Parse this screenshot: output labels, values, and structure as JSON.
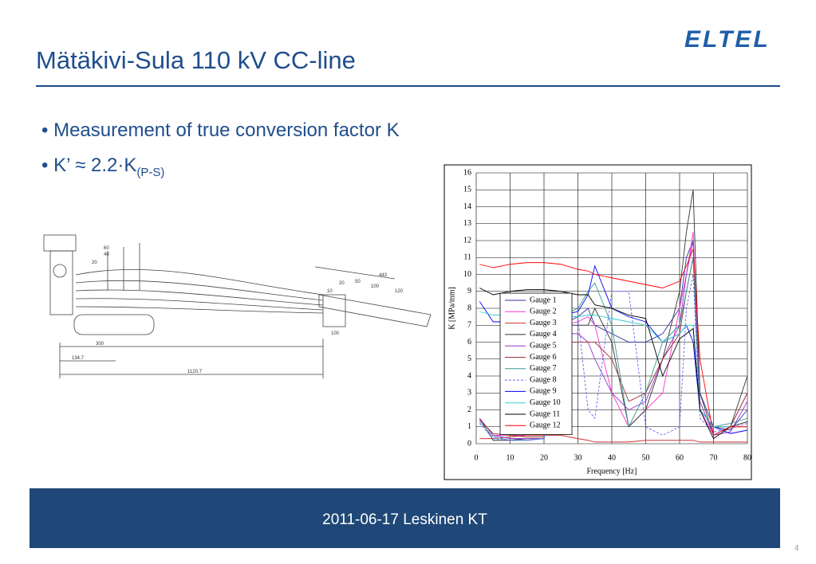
{
  "header": {
    "title": "Mätäkivi-Sula 110 kV CC-line",
    "logo": "ELTEL"
  },
  "bullets": [
    {
      "text": "Measurement of true conversion factor K"
    },
    {
      "text": "K’ ≈ 2.2·K",
      "subscript": "(P-S)"
    }
  ],
  "drawing": {
    "labels": [
      "60",
      "40",
      "20",
      "300",
      "134.7",
      "1120.7",
      "443",
      "20",
      "50",
      "100",
      "120",
      "10",
      "100"
    ]
  },
  "chart_data": {
    "type": "line",
    "xlabel": "Frequency [Hz]",
    "ylabel": "K [MPa/mm]",
    "x": [
      1,
      5,
      10,
      15,
      20,
      25,
      30,
      33,
      35,
      40,
      45,
      50,
      55,
      60,
      62,
      64,
      66,
      70,
      75,
      80
    ],
    "xlim": [
      0,
      80
    ],
    "xticks": [
      0,
      10,
      20,
      30,
      40,
      50,
      60,
      70,
      80
    ],
    "ylim": [
      0,
      16
    ],
    "yticks": [
      0,
      1,
      2,
      3,
      4,
      5,
      6,
      7,
      8,
      9,
      10,
      11,
      12,
      13,
      14,
      15,
      16
    ],
    "grid": true,
    "legend": "left",
    "series": [
      {
        "name": "Gauge 1",
        "color": "#3333aa",
        "values": [
          1.5,
          0.5,
          0.3,
          0.3,
          0.3,
          7,
          7.5,
          8,
          7,
          6.5,
          6,
          6,
          6.5,
          8,
          11,
          12,
          3,
          1,
          0.8,
          2
        ]
      },
      {
        "name": "Gauge 2",
        "color": "#ff33cc",
        "values": [
          1.5,
          0.5,
          0.5,
          0.5,
          0.5,
          7,
          7.2,
          7.5,
          7,
          3,
          1,
          2,
          3,
          8,
          10,
          12.5,
          2,
          0.5,
          1,
          3
        ]
      },
      {
        "name": "Gauge 3",
        "color": "#cc3333",
        "values": [
          0.3,
          0.3,
          0.4,
          0.5,
          0.5,
          0.5,
          0.3,
          0.2,
          0.1,
          0.1,
          0.1,
          0.2,
          0.2,
          0.2,
          0.2,
          0.2,
          0.1,
          0.1,
          0.1,
          0.1
        ]
      },
      {
        "name": "Gauge 4",
        "color": "#333333",
        "values": [
          1.5,
          0.2,
          0.2,
          0.3,
          0.3,
          7,
          7,
          7,
          8,
          6,
          1,
          2,
          5,
          9,
          12.5,
          15,
          3,
          0.5,
          1,
          4
        ]
      },
      {
        "name": "Gauge 5",
        "color": "#9933cc",
        "values": [
          1.5,
          0.5,
          0.3,
          0.3,
          0.3,
          6.5,
          6.5,
          6,
          5,
          3,
          2,
          2.5,
          5,
          7,
          10,
          12,
          2.5,
          0.5,
          0.7,
          2.5
        ]
      },
      {
        "name": "Gauge 6",
        "color": "#993333",
        "values": [
          1.4,
          0.6,
          0.5,
          0.4,
          0.4,
          6,
          6,
          6,
          6,
          5,
          2.5,
          3,
          5,
          6.5,
          9,
          11,
          2,
          1,
          1,
          3
        ]
      },
      {
        "name": "Gauge 7",
        "color": "#339999",
        "values": [
          1.3,
          0.4,
          0.2,
          0.2,
          0.3,
          7.5,
          8,
          9,
          9.5,
          7,
          1,
          3,
          6,
          7,
          9,
          11,
          2,
          1,
          1.2,
          1.5
        ]
      },
      {
        "name": "Gauge 8",
        "color": "#6666ff",
        "dashed": true,
        "values": [
          1.2,
          0.3,
          0.2,
          0.2,
          0.3,
          7.5,
          7.5,
          2,
          1.5,
          9,
          9,
          1,
          0.5,
          1,
          8,
          10,
          1.5,
          0.7,
          0.9,
          1.2
        ]
      },
      {
        "name": "Gauge 9",
        "color": "#0000ff",
        "values": [
          8.4,
          7.2,
          7.2,
          7.2,
          7.2,
          7.6,
          7.8,
          8.8,
          10.5,
          8,
          7.5,
          7.2,
          6,
          6.5,
          7,
          6,
          2,
          1,
          0.6,
          0.8
        ]
      },
      {
        "name": "Gauge 10",
        "color": "#33cccc",
        "values": [
          7.8,
          7.6,
          7.6,
          7.6,
          7.6,
          7.5,
          7.5,
          7.6,
          7.6,
          7.4,
          7.2,
          7,
          6,
          6.5,
          7,
          7,
          2,
          1,
          1,
          1
        ]
      },
      {
        "name": "Gauge 11",
        "color": "#000000",
        "values": [
          9.2,
          8.8,
          9,
          9.1,
          9.1,
          9,
          8.8,
          8.8,
          8.2,
          8,
          7.6,
          7.4,
          4,
          6.2,
          6.5,
          6.8,
          2,
          0.3,
          1,
          1.3
        ]
      },
      {
        "name": "Gauge 12",
        "color": "#ff0000",
        "values": [
          10.6,
          10.4,
          10.6,
          10.7,
          10.7,
          10.6,
          10.3,
          10.2,
          10,
          9.8,
          9.6,
          9.4,
          9.2,
          9.6,
          10.5,
          11.5,
          5,
          0.5,
          1,
          1
        ]
      }
    ]
  },
  "footer": "2011-06-17 Leskinen KT",
  "page_number": "4"
}
